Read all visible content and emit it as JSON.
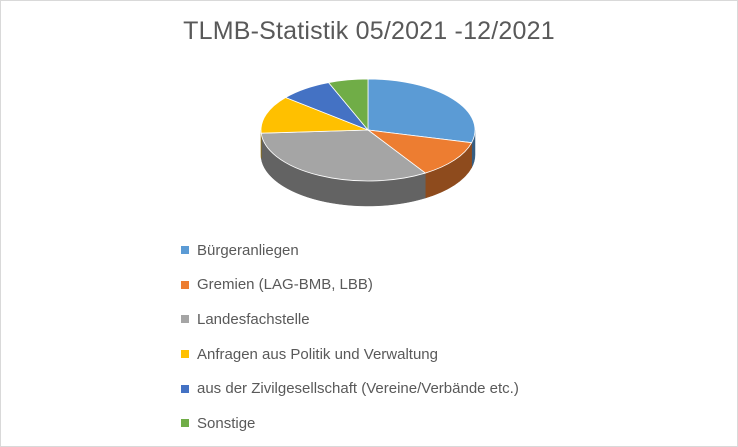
{
  "chart_data": {
    "type": "pie",
    "title": "TLMB-Statistik 05/2021 -12/2021",
    "three_d": true,
    "legend_position": "bottom",
    "categories": [
      "Bürgeranliegen",
      "Gremien (LAG-BMB, LBB)",
      "Landesfachstelle",
      "Anfragen aus Politik und Verwaltung",
      "aus der Zivilgesellschaft (Vereine/Verbände etc.)",
      "Sonstige"
    ],
    "values": [
      29,
      12,
      33,
      12,
      8,
      6
    ],
    "colors": [
      "#5b9bd5",
      "#ed7d31",
      "#a5a5a5",
      "#ffc000",
      "#4472c4",
      "#70ad47"
    ]
  }
}
